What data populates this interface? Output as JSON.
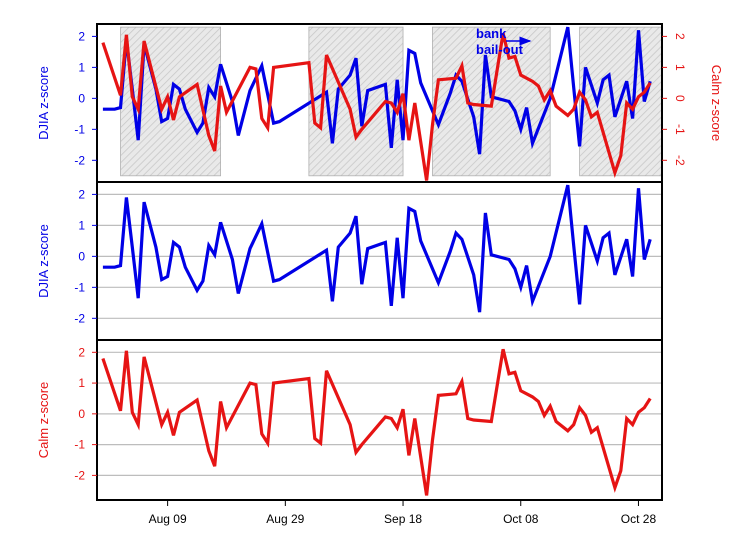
{
  "chart_data": {
    "type": "line",
    "x_axis": {
      "kind": "date",
      "tick_labels": [
        "Aug 09",
        "Aug 29",
        "Sep 18",
        "Oct 08",
        "Oct 28"
      ],
      "tick_dates": [
        "2008-08-09",
        "2008-08-29",
        "2008-09-18",
        "2008-10-08",
        "2008-10-28"
      ],
      "range": [
        "2008-07-28",
        "2008-11-01"
      ]
    },
    "colors": {
      "djia": "#0000e6",
      "calm": "#e61414",
      "grid": "#bdbdbd",
      "hatch_fill": "#e9e9e9",
      "hatch_line": "#c8c8c8"
    },
    "shaded_periods": [
      [
        "2008-08-01",
        "2008-08-18"
      ],
      [
        "2008-09-02",
        "2008-09-18"
      ],
      [
        "2008-09-23",
        "2008-10-13"
      ],
      [
        "2008-10-18",
        "2008-11-01"
      ]
    ],
    "annotation": {
      "line1": "bank",
      "line2": "bail-out",
      "arrow_target_date": "2008-10-13"
    },
    "panels": [
      {
        "ylabel_left": "DJIA z-score",
        "ylabel_right": "Calm z-score",
        "ylim": [
          -2.7,
          2.4
        ],
        "yticks": [
          -2,
          -1,
          0,
          1,
          2
        ],
        "series": [
          "djia",
          "calm"
        ],
        "grid": false
      },
      {
        "ylabel_left": "DJIA z-score",
        "ylim": [
          -2.7,
          2.4
        ],
        "yticks": [
          -2,
          -1,
          0,
          1,
          2
        ],
        "series": [
          "djia"
        ],
        "grid": true
      },
      {
        "ylabel_left": "Calm z-score",
        "ylim": [
          -2.8,
          2.4
        ],
        "yticks": [
          -2,
          -1,
          0,
          1,
          2
        ],
        "series": [
          "calm"
        ],
        "grid": true
      }
    ],
    "series": {
      "djia": {
        "dates": [
          "2008-07-29",
          "2008-07-31",
          "2008-08-01",
          "2008-08-02",
          "2008-08-03",
          "2008-08-04",
          "2008-08-05",
          "2008-08-07",
          "2008-08-08",
          "2008-08-09",
          "2008-08-10",
          "2008-08-11",
          "2008-08-12",
          "2008-08-14",
          "2008-08-15",
          "2008-08-16",
          "2008-08-17",
          "2008-08-18",
          "2008-08-20",
          "2008-08-21",
          "2008-08-23",
          "2008-08-25",
          "2008-08-27",
          "2008-08-28",
          "2008-09-05",
          "2008-09-06",
          "2008-09-07",
          "2008-09-09",
          "2008-09-10",
          "2008-09-11",
          "2008-09-12",
          "2008-09-15",
          "2008-09-16",
          "2008-09-17",
          "2008-09-18",
          "2008-09-19",
          "2008-09-20",
          "2008-09-21",
          "2008-09-24",
          "2008-09-26",
          "2008-09-27",
          "2008-09-28",
          "2008-09-30",
          "2008-10-01",
          "2008-10-02",
          "2008-10-03",
          "2008-10-06",
          "2008-10-07",
          "2008-10-08",
          "2008-10-09",
          "2008-10-10",
          "2008-10-13",
          "2008-10-16",
          "2008-10-17",
          "2008-10-18",
          "2008-10-19",
          "2008-10-21",
          "2008-10-22",
          "2008-10-23",
          "2008-10-24",
          "2008-10-26",
          "2008-10-27",
          "2008-10-28",
          "2008-10-29",
          "2008-10-30"
        ],
        "values": [
          -0.35,
          -0.35,
          -0.3,
          1.9,
          0.3,
          -1.35,
          1.75,
          0.3,
          -0.75,
          -0.65,
          0.45,
          0.3,
          -0.35,
          -1.1,
          -0.8,
          0.35,
          0.05,
          1.1,
          -0.1,
          -1.2,
          0.25,
          1.05,
          -0.8,
          -0.75,
          0.2,
          -1.45,
          0.3,
          0.75,
          1.3,
          -0.9,
          0.25,
          0.45,
          -1.6,
          0.6,
          -1.35,
          1.55,
          1.45,
          0.5,
          -0.85,
          0.15,
          0.75,
          0.55,
          -0.6,
          -1.8,
          1.4,
          0.05,
          -0.1,
          -0.4,
          -1.0,
          -0.3,
          -1.45,
          0.0,
          2.3,
          0.35,
          -1.55,
          1.0,
          -0.15,
          0.6,
          0.75,
          -0.6,
          0.55,
          -0.65,
          2.2,
          -0.1,
          0.55
        ]
      },
      "calm": {
        "dates": [
          "2008-07-29",
          "2008-08-01",
          "2008-08-02",
          "2008-08-03",
          "2008-08-04",
          "2008-08-05",
          "2008-08-08",
          "2008-08-09",
          "2008-08-10",
          "2008-08-11",
          "2008-08-14",
          "2008-08-16",
          "2008-08-17",
          "2008-08-18",
          "2008-08-19",
          "2008-08-23",
          "2008-08-24",
          "2008-08-25",
          "2008-08-26",
          "2008-08-27",
          "2008-09-02",
          "2008-09-03",
          "2008-09-04",
          "2008-09-05",
          "2008-09-09",
          "2008-09-10",
          "2008-09-11",
          "2008-09-15",
          "2008-09-16",
          "2008-09-17",
          "2008-09-18",
          "2008-09-19",
          "2008-09-20",
          "2008-09-22",
          "2008-09-23",
          "2008-09-24",
          "2008-09-27",
          "2008-09-28",
          "2008-09-29",
          "2008-09-30",
          "2008-10-03",
          "2008-10-05",
          "2008-10-06",
          "2008-10-07",
          "2008-10-08",
          "2008-10-10",
          "2008-10-11",
          "2008-10-12",
          "2008-10-13",
          "2008-10-14",
          "2008-10-16",
          "2008-10-17",
          "2008-10-18",
          "2008-10-19",
          "2008-10-20",
          "2008-10-21",
          "2008-10-24",
          "2008-10-25",
          "2008-10-26",
          "2008-10-27",
          "2008-10-28",
          "2008-10-29",
          "2008-10-30"
        ],
        "values": [
          1.8,
          0.1,
          2.05,
          0.05,
          -0.35,
          1.85,
          -0.35,
          0.05,
          -0.7,
          0.05,
          0.45,
          -1.2,
          -1.7,
          0.4,
          -0.45,
          1.0,
          0.95,
          -0.65,
          -0.95,
          1.0,
          1.15,
          -0.8,
          -0.95,
          1.4,
          -0.35,
          -1.25,
          -1.0,
          -0.1,
          -0.15,
          -0.45,
          0.15,
          -1.35,
          -0.15,
          -2.65,
          -0.85,
          0.6,
          0.65,
          1.05,
          -0.15,
          -0.2,
          -0.25,
          2.1,
          1.3,
          1.35,
          0.75,
          0.55,
          0.4,
          -0.05,
          0.25,
          -0.25,
          -0.55,
          -0.35,
          0.2,
          -0.05,
          -0.6,
          -0.45,
          -2.4,
          -1.85,
          -0.15,
          -0.35,
          0.05,
          0.2,
          0.5
        ]
      }
    }
  }
}
